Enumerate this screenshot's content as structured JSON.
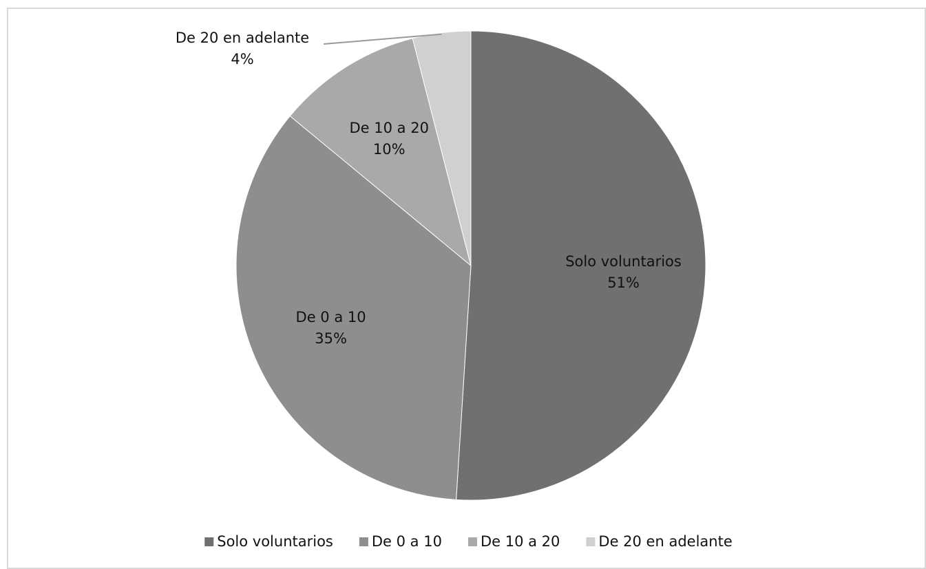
{
  "chart_data": {
    "type": "pie",
    "categories": [
      "Solo voluntarios",
      "De 0 a 10",
      "De 10 a 20",
      "De 20 en adelante"
    ],
    "values": [
      51,
      35,
      10,
      4
    ],
    "value_labels": [
      "51%",
      "35%",
      "10%",
      "4%"
    ],
    "colors": [
      "#707070",
      "#8e8e8e",
      "#a9a9a9",
      "#d0d0d0"
    ],
    "legend": "bottom"
  }
}
